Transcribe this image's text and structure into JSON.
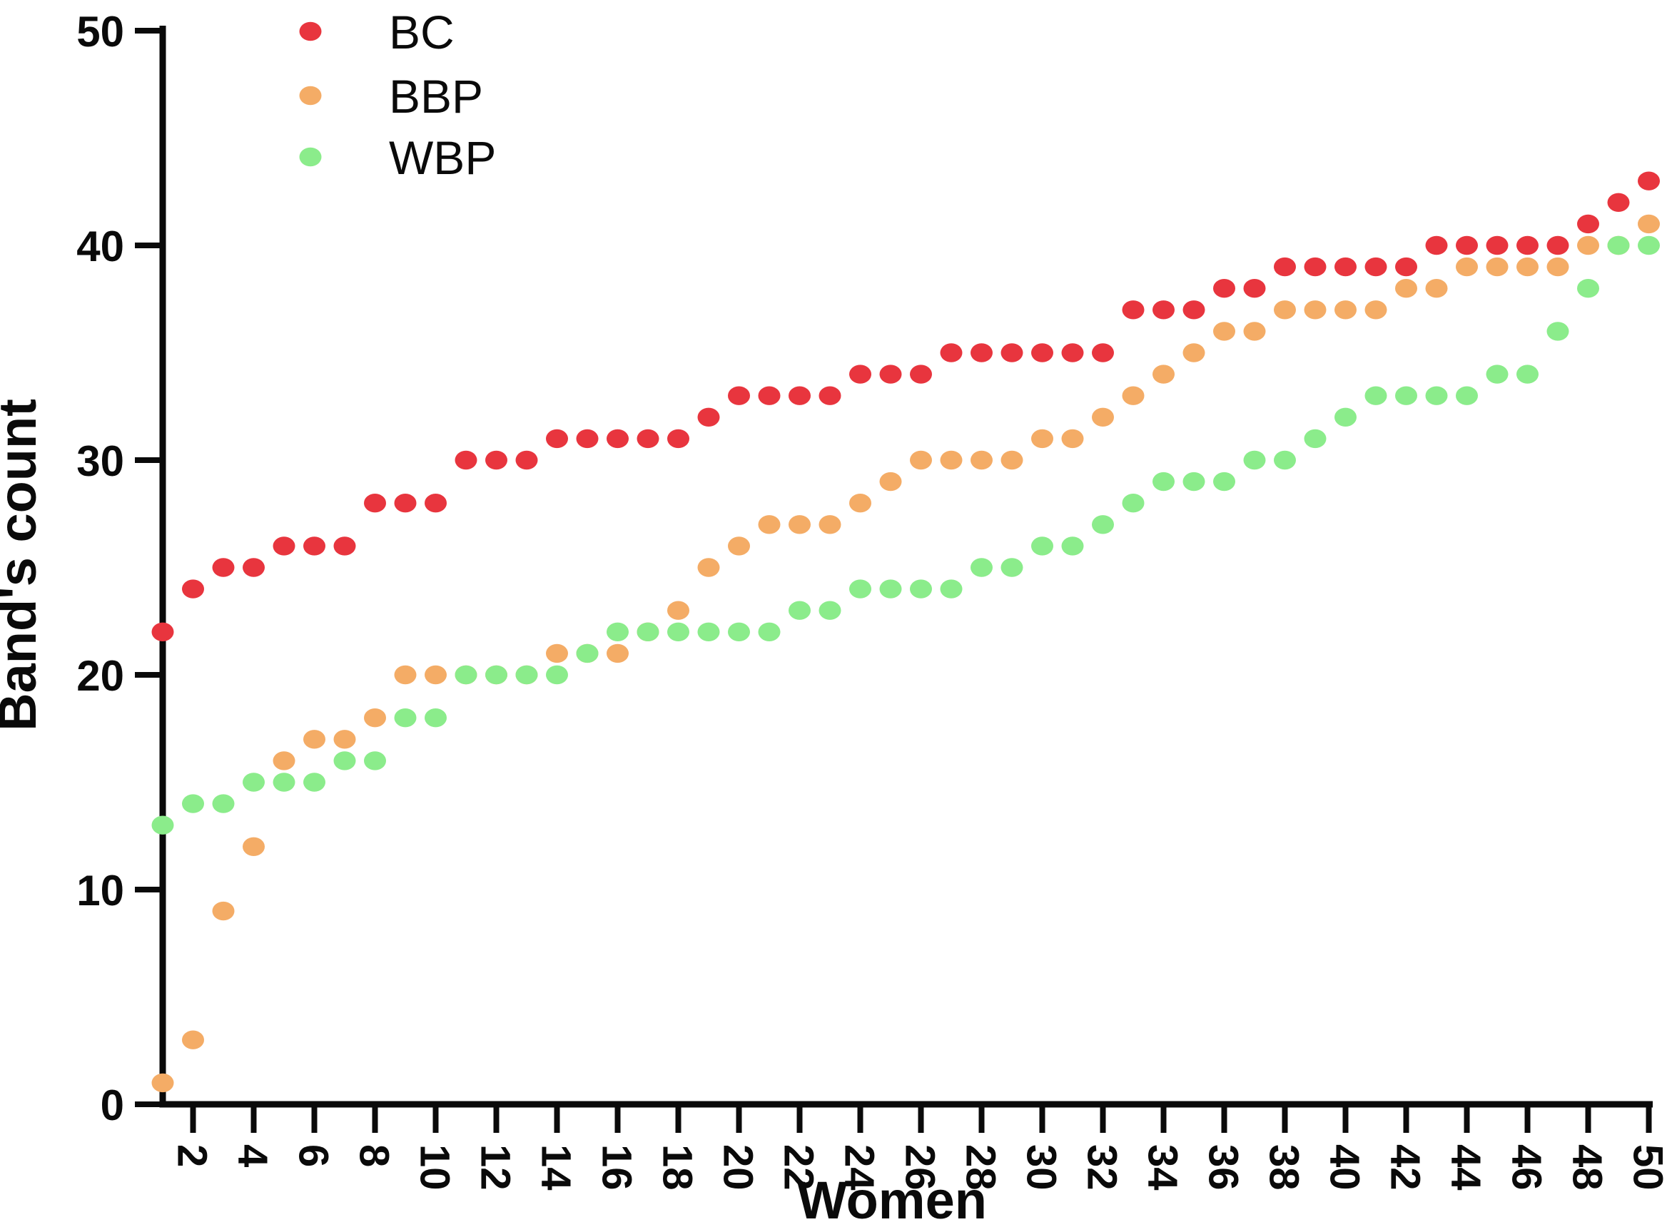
{
  "figure": {
    "background": "#ffffff",
    "axis_color": "#0a0a0a"
  },
  "chart_data": {
    "type": "scatter",
    "title": "",
    "xlabel": "Women",
    "ylabel": "Band's count",
    "xlim": [
      0,
      50
    ],
    "ylim": [
      0,
      50
    ],
    "grid": false,
    "legend_position": "top-left",
    "x_tick_labels": [
      2,
      4,
      6,
      8,
      10,
      12,
      14,
      16,
      18,
      20,
      22,
      24,
      26,
      28,
      30,
      32,
      34,
      36,
      38,
      40,
      42,
      44,
      46,
      48,
      50
    ],
    "y_tick_labels": [
      0,
      10,
      20,
      30,
      40,
      50
    ],
    "x": [
      1,
      2,
      3,
      4,
      5,
      6,
      7,
      8,
      9,
      10,
      11,
      12,
      13,
      14,
      15,
      16,
      17,
      18,
      19,
      20,
      21,
      22,
      23,
      24,
      25,
      26,
      27,
      28,
      29,
      30,
      31,
      32,
      33,
      34,
      35,
      36,
      37,
      38,
      39,
      40,
      41,
      42,
      43,
      44,
      45,
      46,
      47,
      48,
      49,
      50
    ],
    "series": [
      {
        "name": "BC",
        "color": "#e8353e",
        "values": [
          22,
          24,
          25,
          25,
          26,
          26,
          26,
          28,
          28,
          28,
          30,
          30,
          30,
          31,
          31,
          31,
          31,
          31,
          32,
          33,
          33,
          33,
          33,
          34,
          34,
          34,
          35,
          35,
          35,
          35,
          35,
          35,
          37,
          37,
          37,
          38,
          38,
          39,
          39,
          39,
          39,
          39,
          40,
          40,
          40,
          40,
          40,
          41,
          42,
          43
        ]
      },
      {
        "name": "BBP",
        "color": "#f4ac66",
        "values": [
          1,
          3,
          9,
          12,
          16,
          17,
          17,
          18,
          20,
          20,
          20,
          20,
          20,
          21,
          21,
          21,
          22,
          23,
          25,
          26,
          27,
          27,
          27,
          28,
          29,
          30,
          30,
          30,
          30,
          31,
          31,
          32,
          33,
          34,
          35,
          36,
          36,
          37,
          37,
          37,
          37,
          38,
          38,
          39,
          39,
          39,
          39,
          40,
          40,
          41
        ]
      },
      {
        "name": "WBP",
        "color": "#8bec8b",
        "values": [
          13,
          14,
          14,
          15,
          15,
          15,
          16,
          16,
          18,
          18,
          20,
          20,
          20,
          20,
          21,
          22,
          22,
          22,
          22,
          22,
          22,
          23,
          23,
          24,
          24,
          24,
          24,
          25,
          25,
          26,
          26,
          27,
          28,
          29,
          29,
          29,
          30,
          30,
          31,
          32,
          33,
          33,
          33,
          33,
          34,
          34,
          36,
          38,
          40,
          40
        ]
      }
    ]
  }
}
